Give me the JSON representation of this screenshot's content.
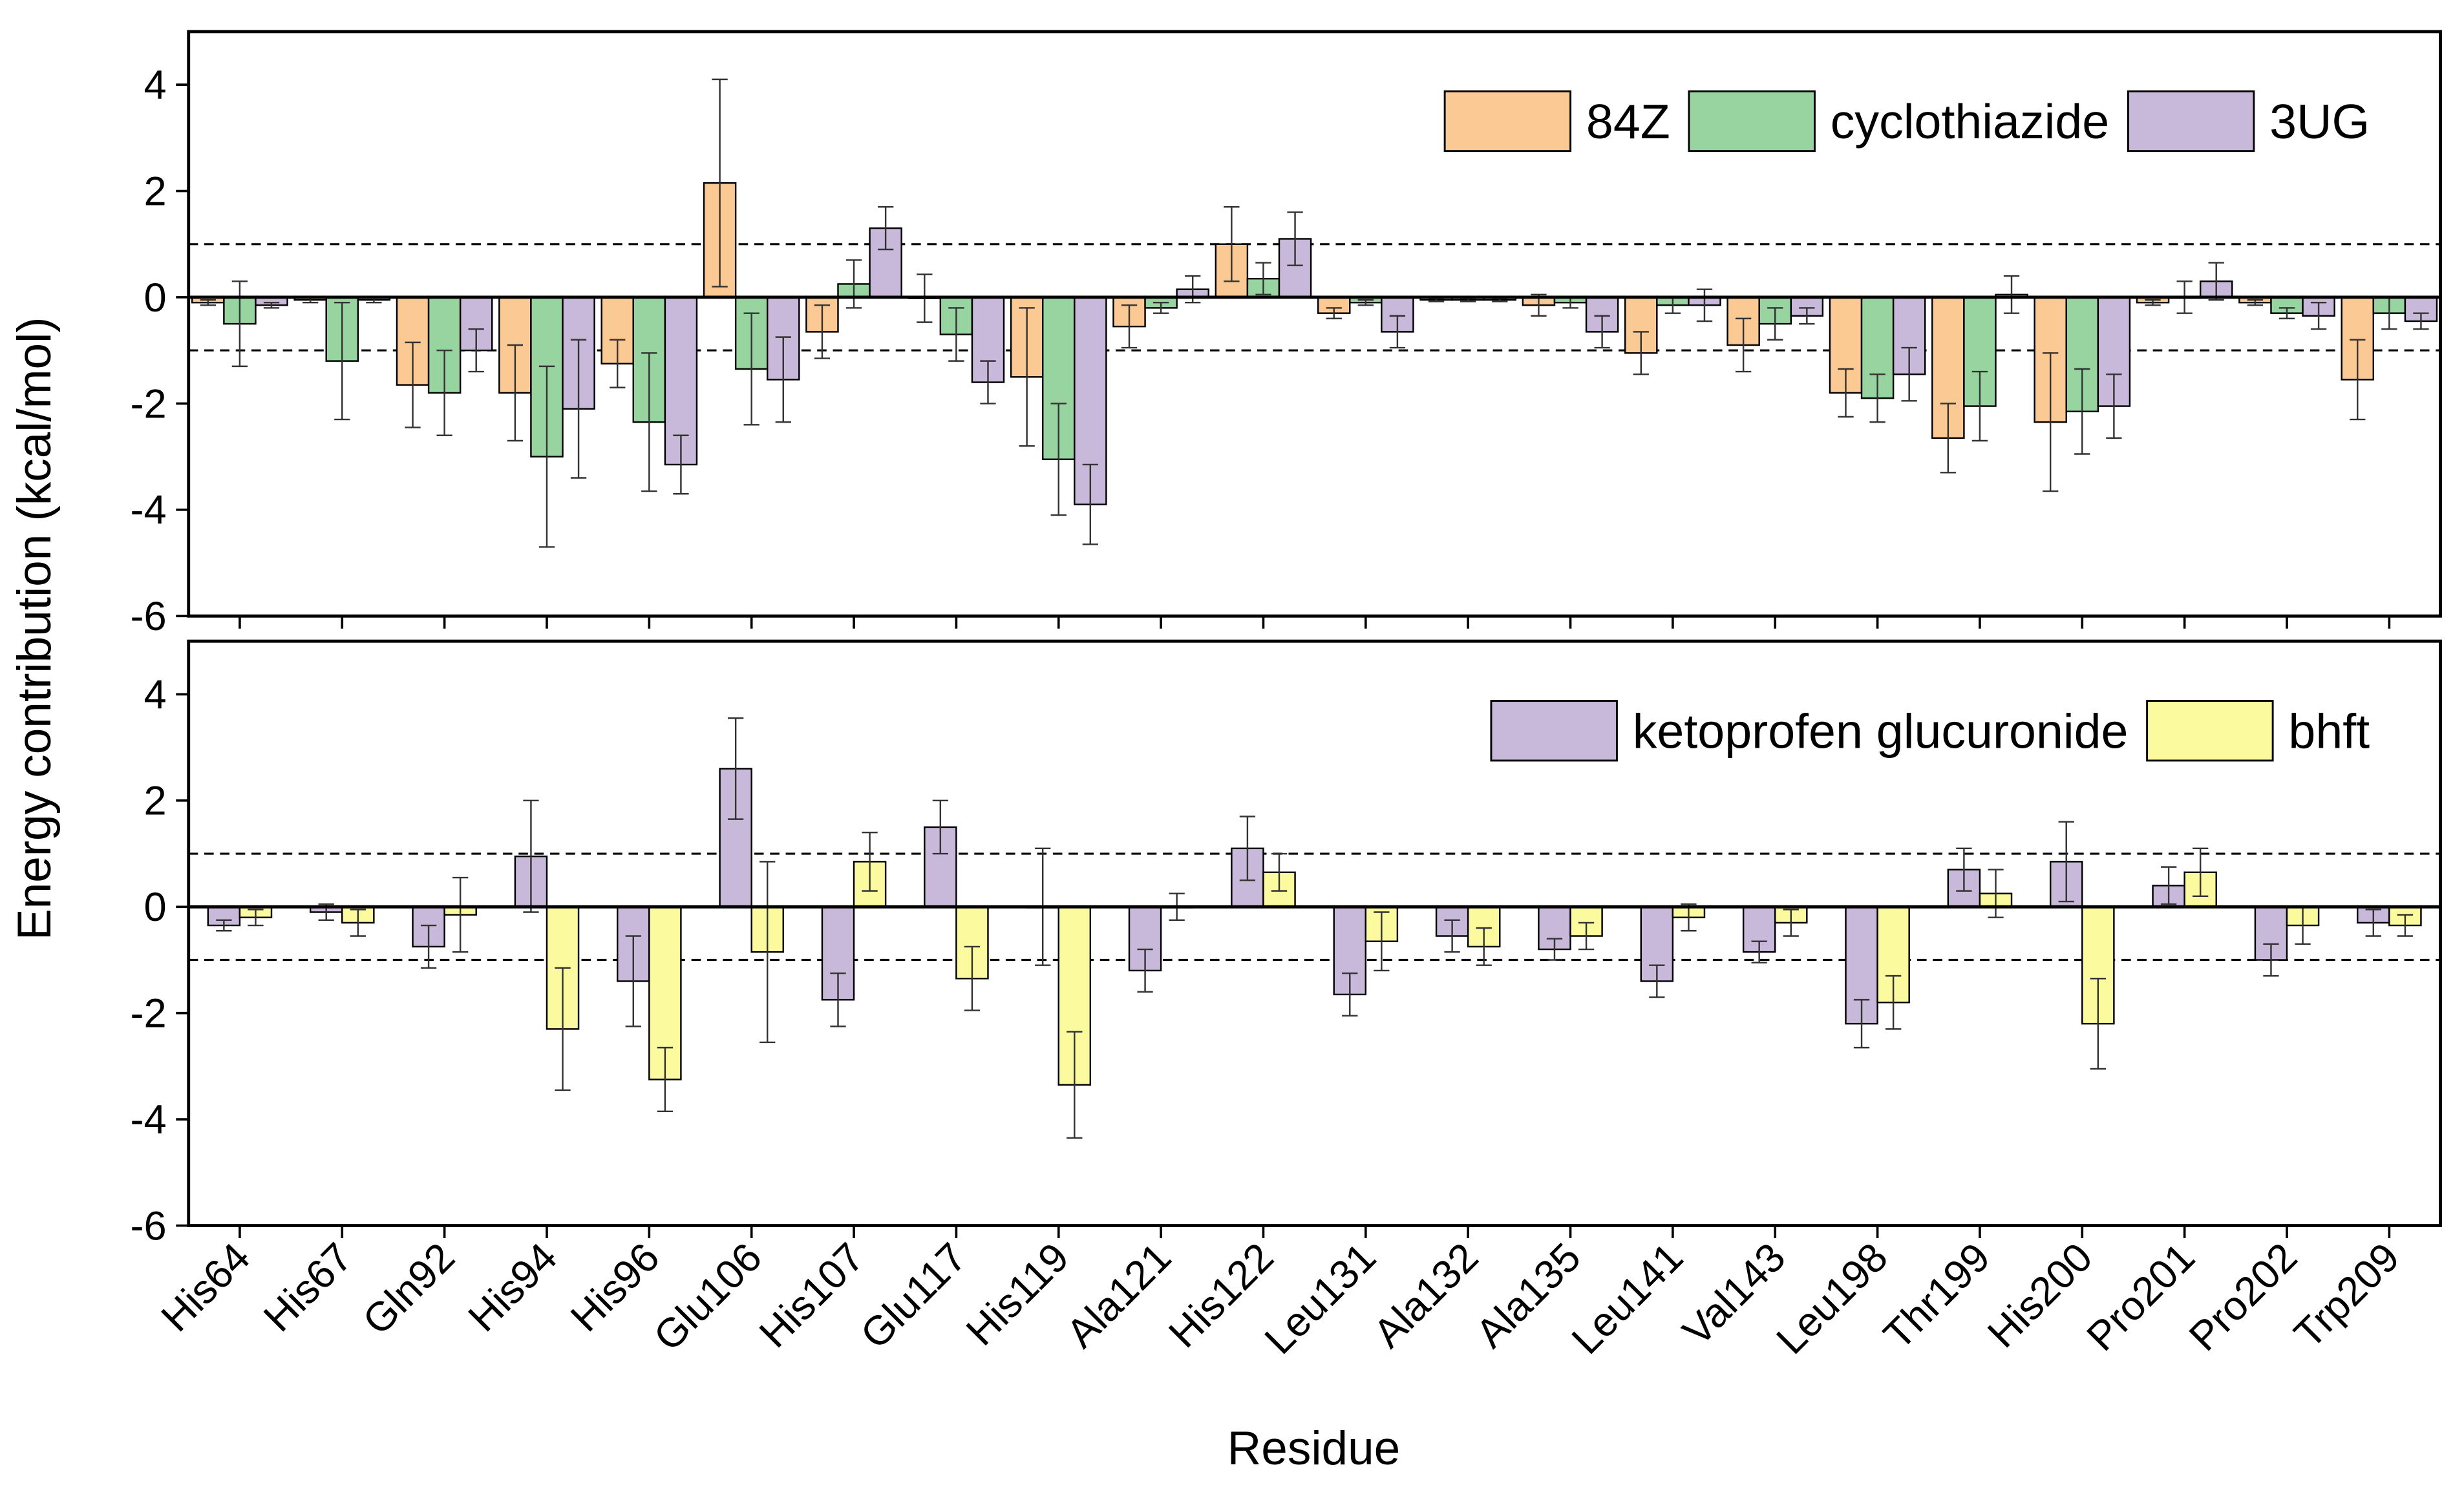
{
  "chart_data": [
    {
      "type": "bar",
      "ylabel": "Energy contribution (kcal/mol)",
      "ylim": [
        -6,
        5
      ],
      "yticks": [
        -6,
        -4,
        -2,
        0,
        2,
        4
      ],
      "reference_lines": [
        1,
        -1
      ],
      "legend": "upper right",
      "series": [
        {
          "name": "84Z",
          "color": "#fbc994",
          "values": [
            -0.1,
            -0.05,
            -1.65,
            -1.8,
            -1.25,
            2.15,
            -0.65,
            -0.02,
            -1.5,
            -0.55,
            1.0,
            -0.3,
            -0.05,
            -0.15,
            -1.05,
            -0.9,
            -1.8,
            -2.65,
            -2.35,
            -0.1,
            -0.1,
            -1.55
          ],
          "errors": [
            0.05,
            0.05,
            0.8,
            0.9,
            0.45,
            1.95,
            0.5,
            0.45,
            1.3,
            0.4,
            0.7,
            0.1,
            0.03,
            0.2,
            0.4,
            0.5,
            0.45,
            0.65,
            1.3,
            0.05,
            0.05,
            0.75
          ]
        },
        {
          "name": "cyclothiazide",
          "color": "#98d4a0",
          "values": [
            -0.5,
            -1.2,
            -1.8,
            -3.0,
            -2.35,
            -1.35,
            0.25,
            -0.7,
            -3.05,
            -0.2,
            0.35,
            -0.1,
            -0.05,
            -0.1,
            -0.15,
            -0.5,
            -1.9,
            -2.05,
            -2.15,
            0.0,
            -0.3,
            -0.3
          ],
          "errors": [
            0.8,
            1.1,
            0.8,
            1.7,
            1.3,
            1.05,
            0.45,
            0.5,
            1.05,
            0.1,
            0.3,
            0.05,
            0.03,
            0.1,
            0.15,
            0.3,
            0.45,
            0.65,
            0.8,
            0.3,
            0.1,
            0.3
          ]
        },
        {
          "name": "3UG",
          "color": "#c8b8da",
          "values": [
            -0.15,
            -0.05,
            -1.0,
            -2.1,
            -3.15,
            -1.55,
            1.3,
            -1.6,
            -3.9,
            0.15,
            1.1,
            -0.65,
            -0.05,
            -0.65,
            -0.15,
            -0.35,
            -1.45,
            0.05,
            -2.05,
            0.3,
            -0.35,
            -0.45
          ],
          "errors": [
            0.05,
            0.05,
            0.4,
            1.3,
            0.55,
            0.8,
            0.4,
            0.4,
            0.75,
            0.25,
            0.5,
            0.3,
            0.03,
            0.3,
            0.3,
            0.15,
            0.5,
            0.35,
            0.6,
            0.35,
            0.25,
            0.15
          ]
        }
      ]
    },
    {
      "type": "bar",
      "xlabel": "Residue",
      "categories": [
        "His64",
        "His67",
        "Gln92",
        "His94",
        "His96",
        "Glu106",
        "His107",
        "Glu117",
        "His119",
        "Ala121",
        "His122",
        "Leu131",
        "Ala132",
        "Ala135",
        "Leu141",
        "Val143",
        "Leu198",
        "Thr199",
        "His200",
        "Pro201",
        "Pro202",
        "Trp209"
      ],
      "ylim": [
        -6,
        5
      ],
      "yticks": [
        -6,
        -4,
        -2,
        0,
        2,
        4
      ],
      "reference_lines": [
        1,
        -1
      ],
      "legend": "upper right",
      "series": [
        {
          "name": "ketoprofen glucuronide",
          "color": "#c8b8da",
          "values": [
            -0.35,
            -0.1,
            -0.75,
            0.95,
            -1.4,
            2.6,
            -1.75,
            1.5,
            0.0,
            -1.2,
            1.1,
            -1.65,
            -0.55,
            -0.8,
            -1.4,
            -0.85,
            -2.2,
            0.7,
            0.85,
            0.4,
            -1.0,
            -0.3
          ],
          "errors": [
            0.1,
            0.15,
            0.4,
            1.05,
            0.85,
            0.95,
            0.5,
            0.5,
            1.1,
            0.4,
            0.6,
            0.4,
            0.3,
            0.2,
            0.3,
            0.2,
            0.45,
            0.4,
            0.75,
            0.35,
            0.3,
            0.25
          ]
        },
        {
          "name": "bhft",
          "color": "#fcfa9e",
          "values": [
            -0.2,
            -0.3,
            -0.15,
            -2.3,
            -3.25,
            -0.85,
            0.85,
            -1.35,
            -3.35,
            0.0,
            0.65,
            -0.65,
            -0.75,
            -0.55,
            -0.2,
            -0.3,
            -1.8,
            0.25,
            -2.2,
            0.65,
            -0.35,
            -0.35
          ],
          "errors": [
            0.15,
            0.25,
            0.7,
            1.15,
            0.6,
            1.7,
            0.55,
            0.6,
            1.0,
            0.25,
            0.35,
            0.55,
            0.35,
            0.25,
            0.25,
            0.25,
            0.5,
            0.45,
            0.85,
            0.45,
            0.35,
            0.2
          ]
        }
      ]
    }
  ]
}
